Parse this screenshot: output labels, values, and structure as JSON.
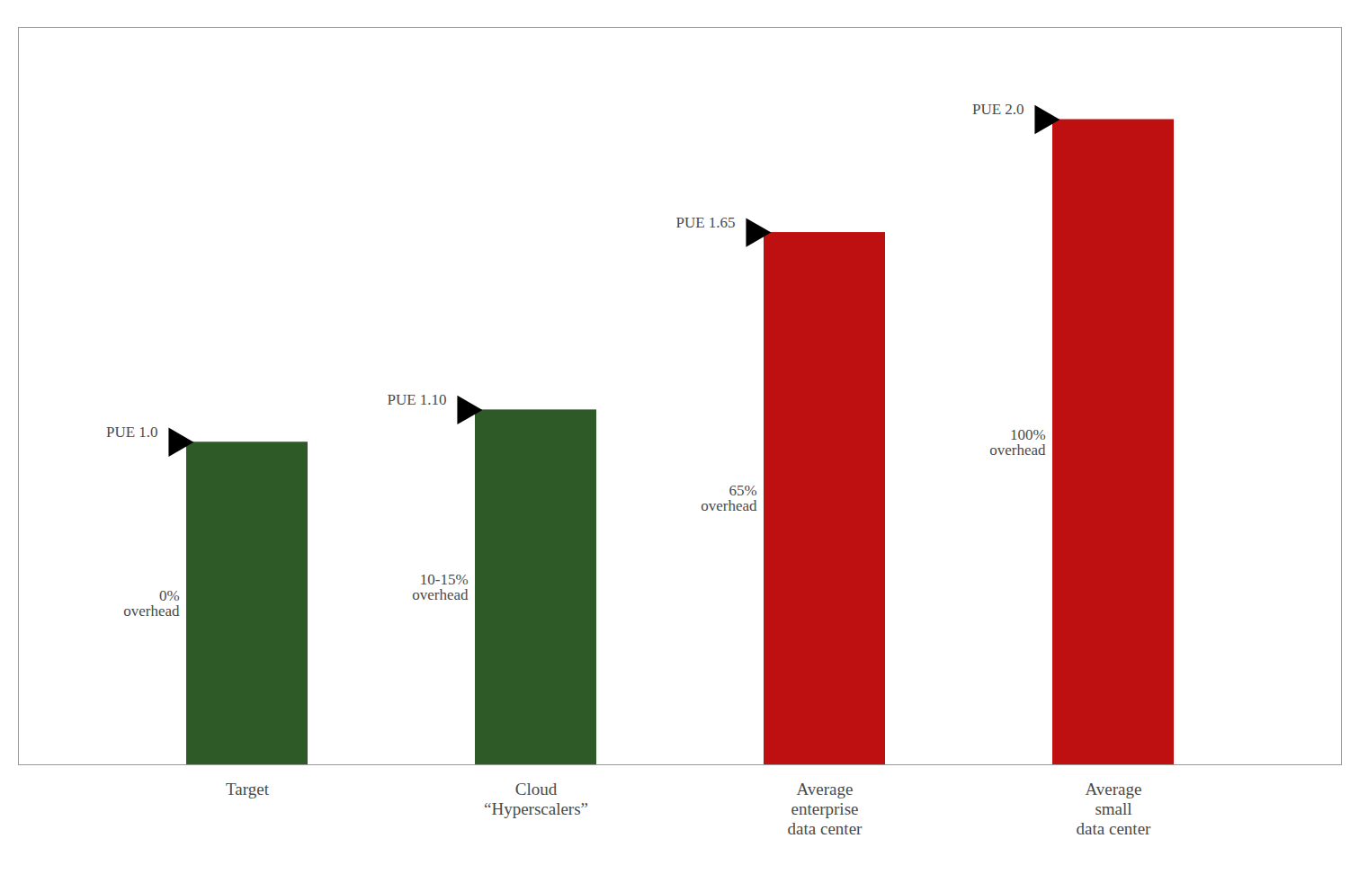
{
  "chart_data": {
    "type": "bar",
    "categories": [
      "Target",
      "Cloud\n“Hyperscalers”",
      "Average\nenterprise\ndata center",
      "Average\nsmall\ndata center"
    ],
    "values": [
      1.0,
      1.1,
      1.65,
      2.0
    ],
    "colors": [
      "#2d5a27",
      "#2d5a27",
      "#be1010",
      "#be1010"
    ],
    "ylim": [
      0,
      2.2857142857142856
    ],
    "tick_labels": "x",
    "grid": false,
    "data_labels": true,
    "value_labels": [
      "PUE 1.0",
      "PUE 1.10",
      "PUE 1.65",
      "PUE 2.0"
    ],
    "annotations": [
      "0%\noverhead",
      "10-15%\noverhead",
      "65%\noverhead",
      "100%\noverhead"
    ]
  }
}
